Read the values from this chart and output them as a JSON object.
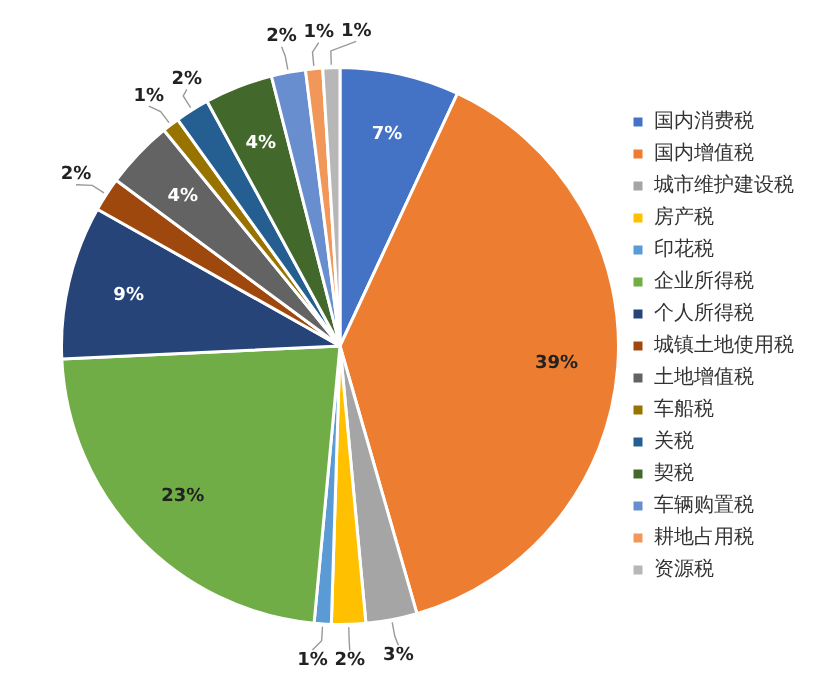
{
  "chart_data": {
    "type": "pie",
    "categories": [
      "国内消费税",
      "国内增值税",
      "城市维护建设税",
      "房产税",
      "印花税",
      "企业所得税",
      "个人所得税",
      "城镇土地使用税",
      "土地增值税",
      "车船税",
      "关税",
      "契税",
      "车辆购置税",
      "耕地占用税",
      "资源税"
    ],
    "values": [
      7,
      39,
      3,
      2,
      1,
      23,
      9,
      2,
      4,
      1,
      2,
      4,
      2,
      1,
      1
    ],
    "value_labels": [
      "7%",
      "39%",
      "3%",
      "2%",
      "1%",
      "23%",
      "9%",
      "2%",
      "4%",
      "1%",
      "2%",
      "4%",
      "2%",
      "1%",
      "1%"
    ],
    "colors": [
      "#4472c4",
      "#ed7d31",
      "#a5a5a5",
      "#ffc000",
      "#5b9bd5",
      "#70ad47",
      "#264478",
      "#9e480e",
      "#636363",
      "#997300",
      "#255e91",
      "#43682b",
      "#698ed0",
      "#f1975a",
      "#b7b7b7"
    ],
    "legend": "right"
  }
}
